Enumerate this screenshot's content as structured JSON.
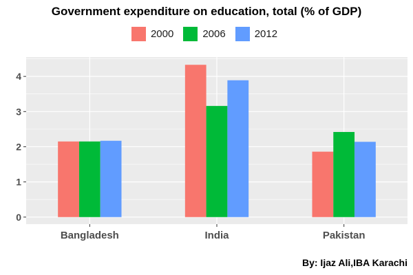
{
  "chart_data": {
    "type": "bar",
    "title": "Government expenditure on education, total (% of GDP)",
    "categories": [
      "Bangladesh",
      "India",
      "Pakistan"
    ],
    "series": [
      {
        "name": "2000",
        "values": [
          2.15,
          4.33,
          1.86
        ],
        "color": "#F8766D"
      },
      {
        "name": "2006",
        "values": [
          2.15,
          3.16,
          2.42
        ],
        "color": "#00BA38"
      },
      {
        "name": "2012",
        "values": [
          2.17,
          3.89,
          2.14
        ],
        "color": "#619CFF"
      }
    ],
    "y_ticks": [
      "0",
      "1",
      "2",
      "3",
      "4"
    ],
    "ylim": [
      -0.2,
      4.55
    ],
    "xlabel": "",
    "ylabel": "",
    "grid": true,
    "legend_position": "top",
    "panel_background": "#EBEBEB",
    "caption": "By: Ijaz Ali,IBA Karachi"
  }
}
